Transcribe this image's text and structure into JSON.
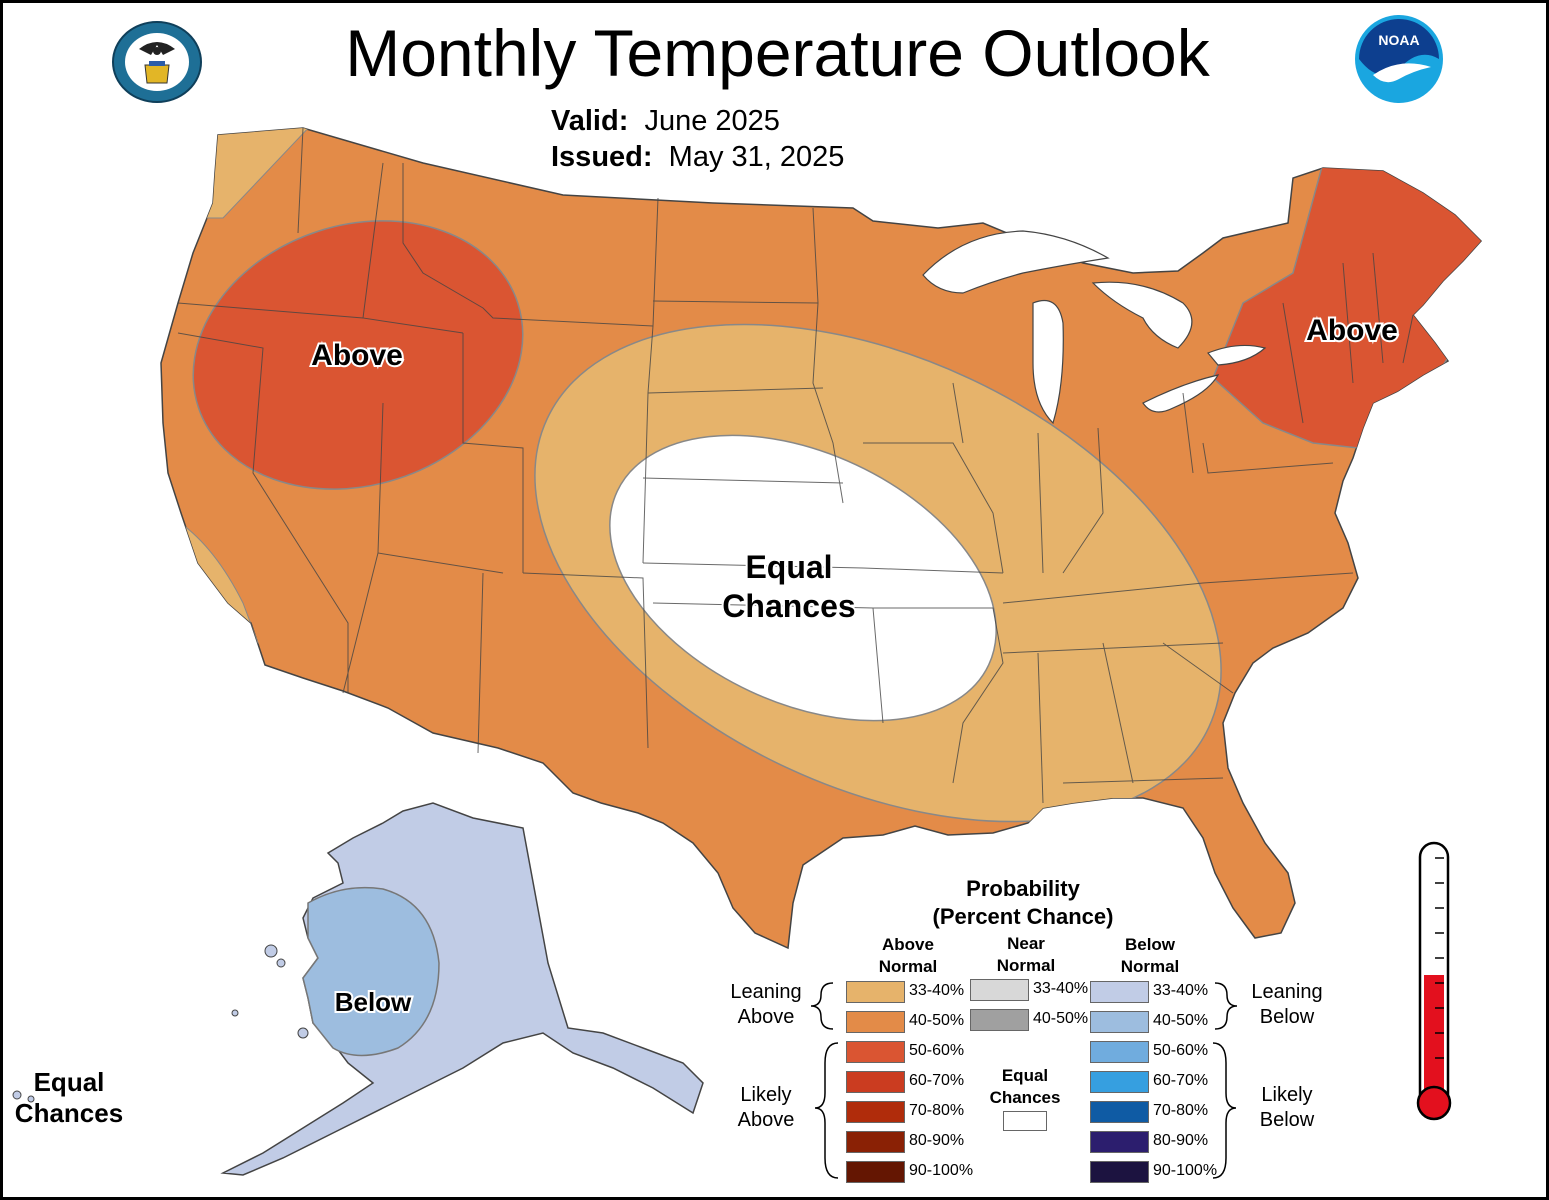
{
  "title": "Monthly Temperature Outlook",
  "valid_label": "Valid:",
  "valid_value": "June 2025",
  "issued_label": "Issued:",
  "issued_value": "May 31, 2025",
  "map_labels": {
    "west": "Above",
    "northeast": "Above",
    "central_1": "Equal",
    "central_2": "Chances",
    "alaska": "Below",
    "hawaii_1": "Equal",
    "hawaii_2": "Chances"
  },
  "legend": {
    "title_1": "Probability",
    "title_2": "(Percent Chance)",
    "col_above_1": "Above",
    "col_above_2": "Normal",
    "col_near_1": "Near",
    "col_near_2": "Normal",
    "col_below_1": "Below",
    "col_below_2": "Normal",
    "leaning_above_1": "Leaning",
    "leaning_above_2": "Above",
    "likely_above_1": "Likely",
    "likely_above_2": "Above",
    "leaning_below_1": "Leaning",
    "leaning_below_2": "Below",
    "likely_below_1": "Likely",
    "likely_below_2": "Below",
    "ec_1": "Equal",
    "ec_2": "Chances",
    "above": [
      {
        "range": "33-40%",
        "color": "#E6B36B"
      },
      {
        "range": "40-50%",
        "color": "#E38B48"
      },
      {
        "range": "50-60%",
        "color": "#DA5532"
      },
      {
        "range": "60-70%",
        "color": "#CB3C20"
      },
      {
        "range": "70-80%",
        "color": "#B02C0B"
      },
      {
        "range": "80-90%",
        "color": "#8A2105"
      },
      {
        "range": "90-100%",
        "color": "#641602"
      }
    ],
    "near": [
      {
        "range": "33-40%",
        "color": "#D8D8D8"
      },
      {
        "range": "40-50%",
        "color": "#A0A0A0"
      }
    ],
    "below": [
      {
        "range": "33-40%",
        "color": "#C1CCE6"
      },
      {
        "range": "40-50%",
        "color": "#9DBDDF"
      },
      {
        "range": "50-60%",
        "color": "#70ACDE"
      },
      {
        "range": "60-70%",
        "color": "#369FE0"
      },
      {
        "range": "70-80%",
        "color": "#0F5BA4"
      },
      {
        "range": "80-90%",
        "color": "#2C1E6E"
      },
      {
        "range": "90-100%",
        "color": "#1C1340"
      }
    ]
  },
  "colors": {
    "above_33_40": "#E6B36B",
    "above_40_50": "#E38B48",
    "above_50_60": "#DA5532",
    "below_33_40": "#C1CCE6",
    "below_40_50": "#9DBDDF",
    "equal_chances": "#FFFFFF",
    "thermometer_red": "#E3101E"
  },
  "icons": [
    "commerce-seal-icon",
    "noaa-logo-icon",
    "thermometer-icon"
  ]
}
